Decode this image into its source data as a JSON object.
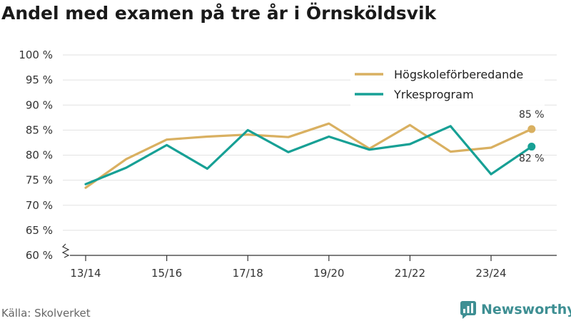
{
  "title": "Andel med examen på tre år i Örnsköldsvik",
  "source": "Källa: Skolverket",
  "brand": "Newsworthy",
  "colors": {
    "hogskole": "#d9b061",
    "yrkes": "#17a095",
    "grid": "#e2e2e2",
    "axis": "#333333",
    "brand": "#3e8f93"
  },
  "chart_data": {
    "type": "line",
    "categories": [
      "13/14",
      "14/15",
      "15/16",
      "16/17",
      "17/18",
      "18/19",
      "19/20",
      "20/21",
      "21/22",
      "22/23",
      "23/24",
      "24/25"
    ],
    "tick_labels": [
      "13/14",
      "15/16",
      "17/18",
      "19/20",
      "21/22",
      "23/24"
    ],
    "y_ticks": [
      60,
      65,
      70,
      75,
      80,
      85,
      90,
      95,
      100
    ],
    "y_tick_labels": [
      "60 %",
      "65 %",
      "70 %",
      "75 %",
      "80 %",
      "85 %",
      "90 %",
      "95 %",
      "100 %"
    ],
    "ylim": [
      60,
      100
    ],
    "axis_break": true,
    "grid": true,
    "legend_position": "top-right",
    "series": [
      {
        "name": "Högskoleförberedande",
        "color_key": "hogskole",
        "values": [
          73.5,
          79.2,
          83.1,
          83.7,
          84.1,
          83.6,
          86.3,
          81.3,
          86.0,
          80.7,
          81.5,
          85.2
        ],
        "end_label": "85 %"
      },
      {
        "name": "Yrkesprogram",
        "color_key": "yrkes",
        "values": [
          74.2,
          77.5,
          82.0,
          77.3,
          85.0,
          80.6,
          83.7,
          81.1,
          82.2,
          85.8,
          76.2,
          81.7
        ],
        "end_label": "82 %"
      }
    ]
  }
}
